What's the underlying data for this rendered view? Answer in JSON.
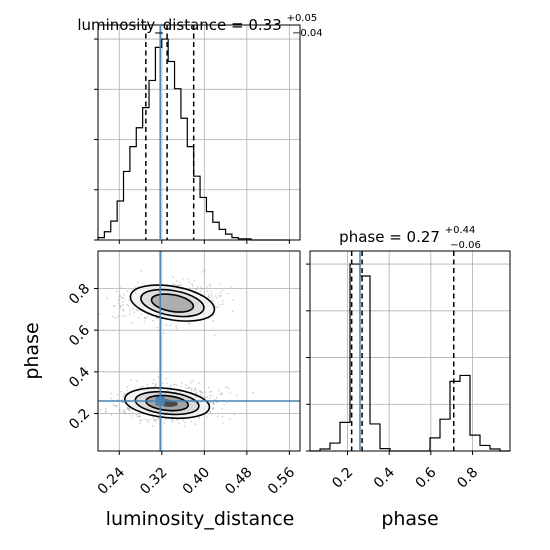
{
  "chart_data": [
    {
      "type": "histogram",
      "panel": "luminosity_distance marginal",
      "title": {
        "prefix": "luminosity_distance = 0.33",
        "sup": "+0.05",
        "sub": "−0.04"
      },
      "xlim": [
        0.2,
        0.58
      ],
      "grid": true,
      "bin_edges": [
        0.2,
        0.212,
        0.224,
        0.236,
        0.248,
        0.26,
        0.272,
        0.284,
        0.296,
        0.308,
        0.32,
        0.332,
        0.344,
        0.356,
        0.368,
        0.38,
        0.392,
        0.404,
        0.416,
        0.428,
        0.44,
        0.452,
        0.464,
        0.476,
        0.488,
        0.5,
        0.512,
        0.524,
        0.536,
        0.548,
        0.56
      ],
      "counts": [
        2,
        7,
        16,
        33,
        58,
        79,
        95,
        112,
        135,
        163,
        170,
        151,
        128,
        103,
        79,
        54,
        36,
        24,
        15,
        9,
        5,
        2,
        1,
        1,
        0,
        0,
        0,
        0,
        0,
        0
      ],
      "quantiles": [
        0.29,
        0.33,
        0.38
      ],
      "truth": 0.317
    },
    {
      "type": "contour",
      "panel": "phase vs luminosity_distance",
      "xlabel": "luminosity_distance",
      "ylabel": "phase",
      "xlim": [
        0.2,
        0.58
      ],
      "ylim": [
        0.02,
        0.98
      ],
      "xticks": [
        "0.24",
        "0.32",
        "0.40",
        "0.48",
        "0.56"
      ],
      "yticks": [
        "0.2",
        "0.4",
        "0.6",
        "0.8"
      ],
      "grid": true,
      "modes": [
        {
          "center": [
            0.33,
            0.25
          ],
          "spread": [
            0.04,
            0.035
          ],
          "weight": 0.62
        },
        {
          "center": [
            0.34,
            0.73
          ],
          "spread": [
            0.04,
            0.04
          ],
          "weight": 0.38
        }
      ],
      "truth": [
        0.317,
        0.26
      ]
    },
    {
      "type": "histogram",
      "panel": "phase marginal",
      "title": {
        "prefix": "phase = 0.27",
        "sup": "+0.44",
        "sub": "−0.06"
      },
      "xlabel": "phase",
      "xlim": [
        0.02,
        0.98
      ],
      "xticks": [
        "0.2",
        "0.4",
        "0.6",
        "0.8"
      ],
      "grid": true,
      "bin_edges": [
        0.02,
        0.068,
        0.116,
        0.164,
        0.212,
        0.26,
        0.308,
        0.356,
        0.404,
        0.452,
        0.5,
        0.548,
        0.596,
        0.644,
        0.692,
        0.74,
        0.788,
        0.836,
        0.884,
        0.932,
        0.98
      ],
      "counts": [
        0,
        5,
        20,
        72,
        470,
        440,
        68,
        6,
        0,
        0,
        0,
        0,
        33,
        80,
        175,
        190,
        40,
        14,
        5,
        0
      ],
      "quantiles": [
        0.22,
        0.27,
        0.71
      ],
      "truth": 0.26
    }
  ],
  "colors": {
    "truth": "#4682b4",
    "hist": "#000000",
    "quantile": "#000000",
    "grid": "#b0b0b0",
    "density_dark": "#3a3a3a",
    "scatter": "#a0a0a0"
  }
}
